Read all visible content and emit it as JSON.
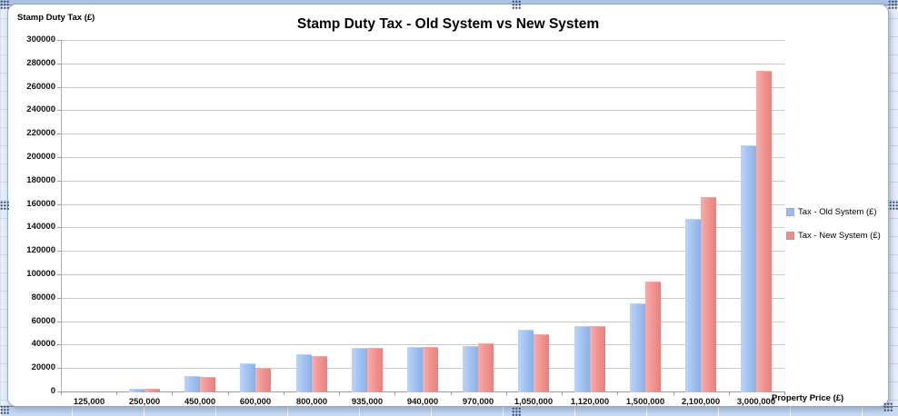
{
  "chart_data": {
    "type": "bar",
    "title": "Stamp Duty Tax - Old System vs New System",
    "y_axis_title": "Stamp Duty Tax (£)",
    "x_axis_title": "Property Price (£)",
    "categories": [
      "125,000",
      "250,000",
      "450,000",
      "600,000",
      "800,000",
      "935,000",
      "940,000",
      "970,000",
      "1,050,000",
      "1,120,000",
      "1,500,000",
      "2,100,000",
      "3,000,000"
    ],
    "series": [
      {
        "name": "Tax - Old System (£)",
        "key": "old",
        "color": "#9cbbe6",
        "values": [
          0,
          2500,
          13500,
          24000,
          32000,
          37400,
          37600,
          38800,
          52500,
          56000,
          75000,
          147000,
          210000
        ]
      },
      {
        "name": "Tax - New System (£)",
        "key": "new",
        "color": "#ec8f8c",
        "values": [
          0,
          2500,
          12500,
          20000,
          30000,
          37250,
          37750,
          40750,
          48750,
          55750,
          93750,
          165750,
          273750
        ]
      }
    ],
    "ylim": [
      0,
      300000
    ],
    "y_tick_step": 20000,
    "y_tick_labels": [
      "0",
      "20000",
      "40000",
      "60000",
      "80000",
      "100000",
      "120000",
      "140000",
      "160000",
      "180000",
      "200000",
      "220000",
      "240000",
      "260000",
      "280000",
      "300000"
    ],
    "grid": true,
    "legend_position": "right"
  },
  "colors": {
    "bar_old_light": "#bad4f8",
    "bar_old_dark": "#8bb0e7",
    "bar_new_light": "#f9aeac",
    "bar_new_dark": "#e8817e",
    "gridline": "#c9c9c9",
    "chart_border": "#94a9cc",
    "sheet_row_highlight": "#c6daf2",
    "sheet_top_strip": "#b1c4e7"
  }
}
